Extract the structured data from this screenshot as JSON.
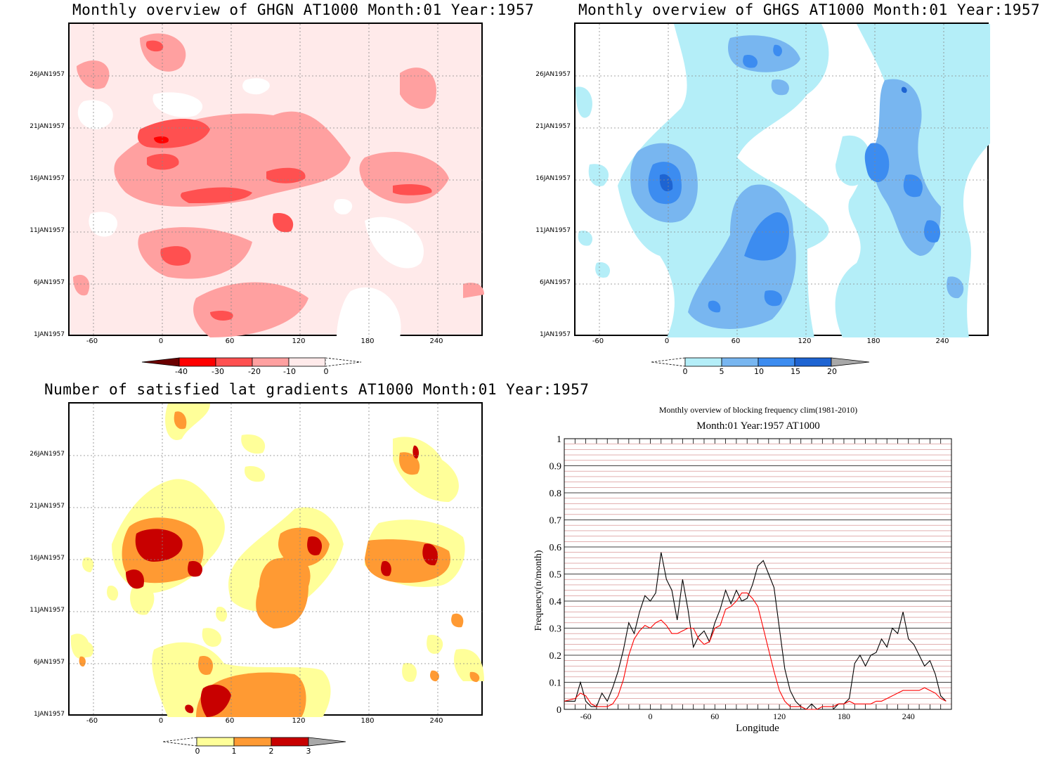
{
  "panels": {
    "tl": {
      "title": "Monthly overview of GHGN AT1000 Month:01 Year:1957",
      "yticks": [
        "26JAN1957",
        "21JAN1957",
        "16JAN1957",
        "11JAN1957",
        "6JAN1957",
        "1JAN1957"
      ],
      "xticks": [
        "-60",
        "0",
        "60",
        "120",
        "180",
        "240"
      ],
      "colorbar": {
        "labels": [
          "-40",
          "-30",
          "-20",
          "-10",
          "0"
        ],
        "colors": [
          "#6b0000",
          "#ff0000",
          "#ff5050",
          "#ffa0a0",
          "#ffeaea"
        ]
      }
    },
    "tr": {
      "title": "Monthly overview of GHGS AT1000 Month:01 Year:1957",
      "yticks": [
        "26JAN1957",
        "21JAN1957",
        "16JAN1957",
        "11JAN1957",
        "6JAN1957",
        "1JAN1957"
      ],
      "xticks": [
        "-60",
        "0",
        "60",
        "120",
        "180",
        "240"
      ],
      "colorbar": {
        "labels": [
          "0",
          "5",
          "10",
          "15",
          "20"
        ],
        "colors": [
          "#b4eef8",
          "#78b6f0",
          "#3c8cf0",
          "#1e64d2",
          "#a8a8a8"
        ]
      }
    },
    "bl": {
      "title": "Number of satisfied lat gradients AT1000 Month:01 Year:1957",
      "yticks": [
        "26JAN1957",
        "21JAN1957",
        "16JAN1957",
        "11JAN1957",
        "6JAN1957",
        "1JAN1957"
      ],
      "xticks": [
        "-60",
        "0",
        "60",
        "120",
        "180",
        "240"
      ],
      "colorbar": {
        "labels": [
          "0",
          "1",
          "2",
          "3"
        ],
        "colors": [
          "#ffff99",
          "#ff9a33",
          "#c80000",
          "#a8a8a8"
        ]
      }
    },
    "br": {
      "title": "Monthly overview of blocking frequency clim(1981-2010)",
      "subtitle": "Month:01 Year:1957  AT1000",
      "ylabel": "Frequency(n/month)",
      "xlabel": "Longitude",
      "yticks": [
        "0",
        "0.1",
        "0.2",
        "0.3",
        "0.4",
        "0.5",
        "0.6",
        "0.7",
        "0.8",
        "0.9",
        "1"
      ],
      "xticks": [
        "-60",
        "0",
        "60",
        "120",
        "180",
        "240"
      ]
    }
  },
  "colors": {
    "black_line": "#000000",
    "red_line": "#ff0000",
    "grid_red": "#d08080"
  },
  "chart_data": [
    {
      "type": "heatmap",
      "title": "Monthly overview of GHGN AT1000 Month:01 Year:1957",
      "xlim": [
        -80,
        280
      ],
      "x_ticks": [
        -60,
        0,
        60,
        120,
        180,
        240
      ],
      "y_ticks": [
        "1JAN1957",
        "6JAN1957",
        "11JAN1957",
        "16JAN1957",
        "21JAN1957",
        "26JAN1957"
      ],
      "levels": [
        -40,
        -30,
        -20,
        -10,
        0
      ]
    },
    {
      "type": "heatmap",
      "title": "Monthly overview of GHGS AT1000 Month:01 Year:1957",
      "xlim": [
        -80,
        280
      ],
      "x_ticks": [
        -60,
        0,
        60,
        120,
        180,
        240
      ],
      "y_ticks": [
        "1JAN1957",
        "6JAN1957",
        "11JAN1957",
        "16JAN1957",
        "21JAN1957",
        "26JAN1957"
      ],
      "levels": [
        0,
        5,
        10,
        15,
        20
      ]
    },
    {
      "type": "heatmap",
      "title": "Number of satisfied lat gradients AT1000 Month:01 Year:1957",
      "xlim": [
        -80,
        280
      ],
      "x_ticks": [
        -60,
        0,
        60,
        120,
        180,
        240
      ],
      "y_ticks": [
        "1JAN1957",
        "6JAN1957",
        "11JAN1957",
        "16JAN1957",
        "21JAN1957",
        "26JAN1957"
      ],
      "levels": [
        0,
        1,
        2,
        3
      ]
    },
    {
      "type": "line",
      "title": "Monthly overview of blocking frequency clim(1981-2010)",
      "subtitle": "Month:01 Year:1957  AT1000",
      "xlabel": "Longitude",
      "ylabel": "Frequency(n/month)",
      "xlim": [
        -80,
        280
      ],
      "ylim": [
        0,
        1
      ],
      "grid": true,
      "x": [
        -80,
        -70,
        -65,
        -60,
        -55,
        -50,
        -45,
        -40,
        -35,
        -30,
        -25,
        -20,
        -15,
        -10,
        -5,
        0,
        5,
        10,
        15,
        20,
        25,
        30,
        35,
        40,
        45,
        50,
        55,
        60,
        65,
        70,
        75,
        80,
        85,
        90,
        95,
        100,
        105,
        110,
        115,
        120,
        125,
        130,
        135,
        140,
        145,
        150,
        155,
        160,
        165,
        170,
        175,
        180,
        185,
        190,
        195,
        200,
        205,
        210,
        215,
        220,
        225,
        230,
        235,
        240,
        245,
        250,
        255,
        260,
        265,
        270,
        275
      ],
      "series": [
        {
          "values": [
            0.03,
            0.03,
            0.1,
            0.03,
            0.01,
            0.01,
            0.06,
            0.03,
            0.08,
            0.14,
            0.22,
            0.32,
            0.28,
            0.36,
            0.42,
            0.4,
            0.43,
            0.58,
            0.48,
            0.44,
            0.33,
            0.48,
            0.37,
            0.23,
            0.27,
            0.29,
            0.25,
            0.32,
            0.37,
            0.44,
            0.39,
            0.44,
            0.4,
            0.41,
            0.46,
            0.53,
            0.55,
            0.5,
            0.45,
            0.3,
            0.15,
            0.07,
            0.03,
            0.01,
            0.0,
            0.02,
            0.0,
            0.0,
            0.0,
            0.0,
            0.02,
            0.02,
            0.04,
            0.17,
            0.2,
            0.16,
            0.2,
            0.21,
            0.26,
            0.23,
            0.3,
            0.28,
            0.36,
            0.26,
            0.24,
            0.2,
            0.16,
            0.18,
            0.13,
            0.05,
            0.03
          ]
        },
        {
          "values": [
            0.03,
            0.04,
            0.06,
            0.05,
            0.02,
            0.01,
            0.01,
            0.01,
            0.02,
            0.05,
            0.11,
            0.2,
            0.26,
            0.29,
            0.31,
            0.3,
            0.32,
            0.33,
            0.31,
            0.28,
            0.28,
            0.29,
            0.3,
            0.3,
            0.26,
            0.24,
            0.25,
            0.3,
            0.31,
            0.37,
            0.38,
            0.4,
            0.43,
            0.43,
            0.41,
            0.38,
            0.3,
            0.22,
            0.14,
            0.07,
            0.03,
            0.01,
            0.01,
            0.01,
            0.0,
            0.0,
            0.0,
            0.01,
            0.01,
            0.01,
            0.02,
            0.02,
            0.03,
            0.02,
            0.02,
            0.02,
            0.02,
            0.03,
            0.03,
            0.04,
            0.05,
            0.06,
            0.07,
            0.07,
            0.07,
            0.07,
            0.08,
            0.07,
            0.06,
            0.04,
            0.03
          ]
        }
      ]
    }
  ]
}
